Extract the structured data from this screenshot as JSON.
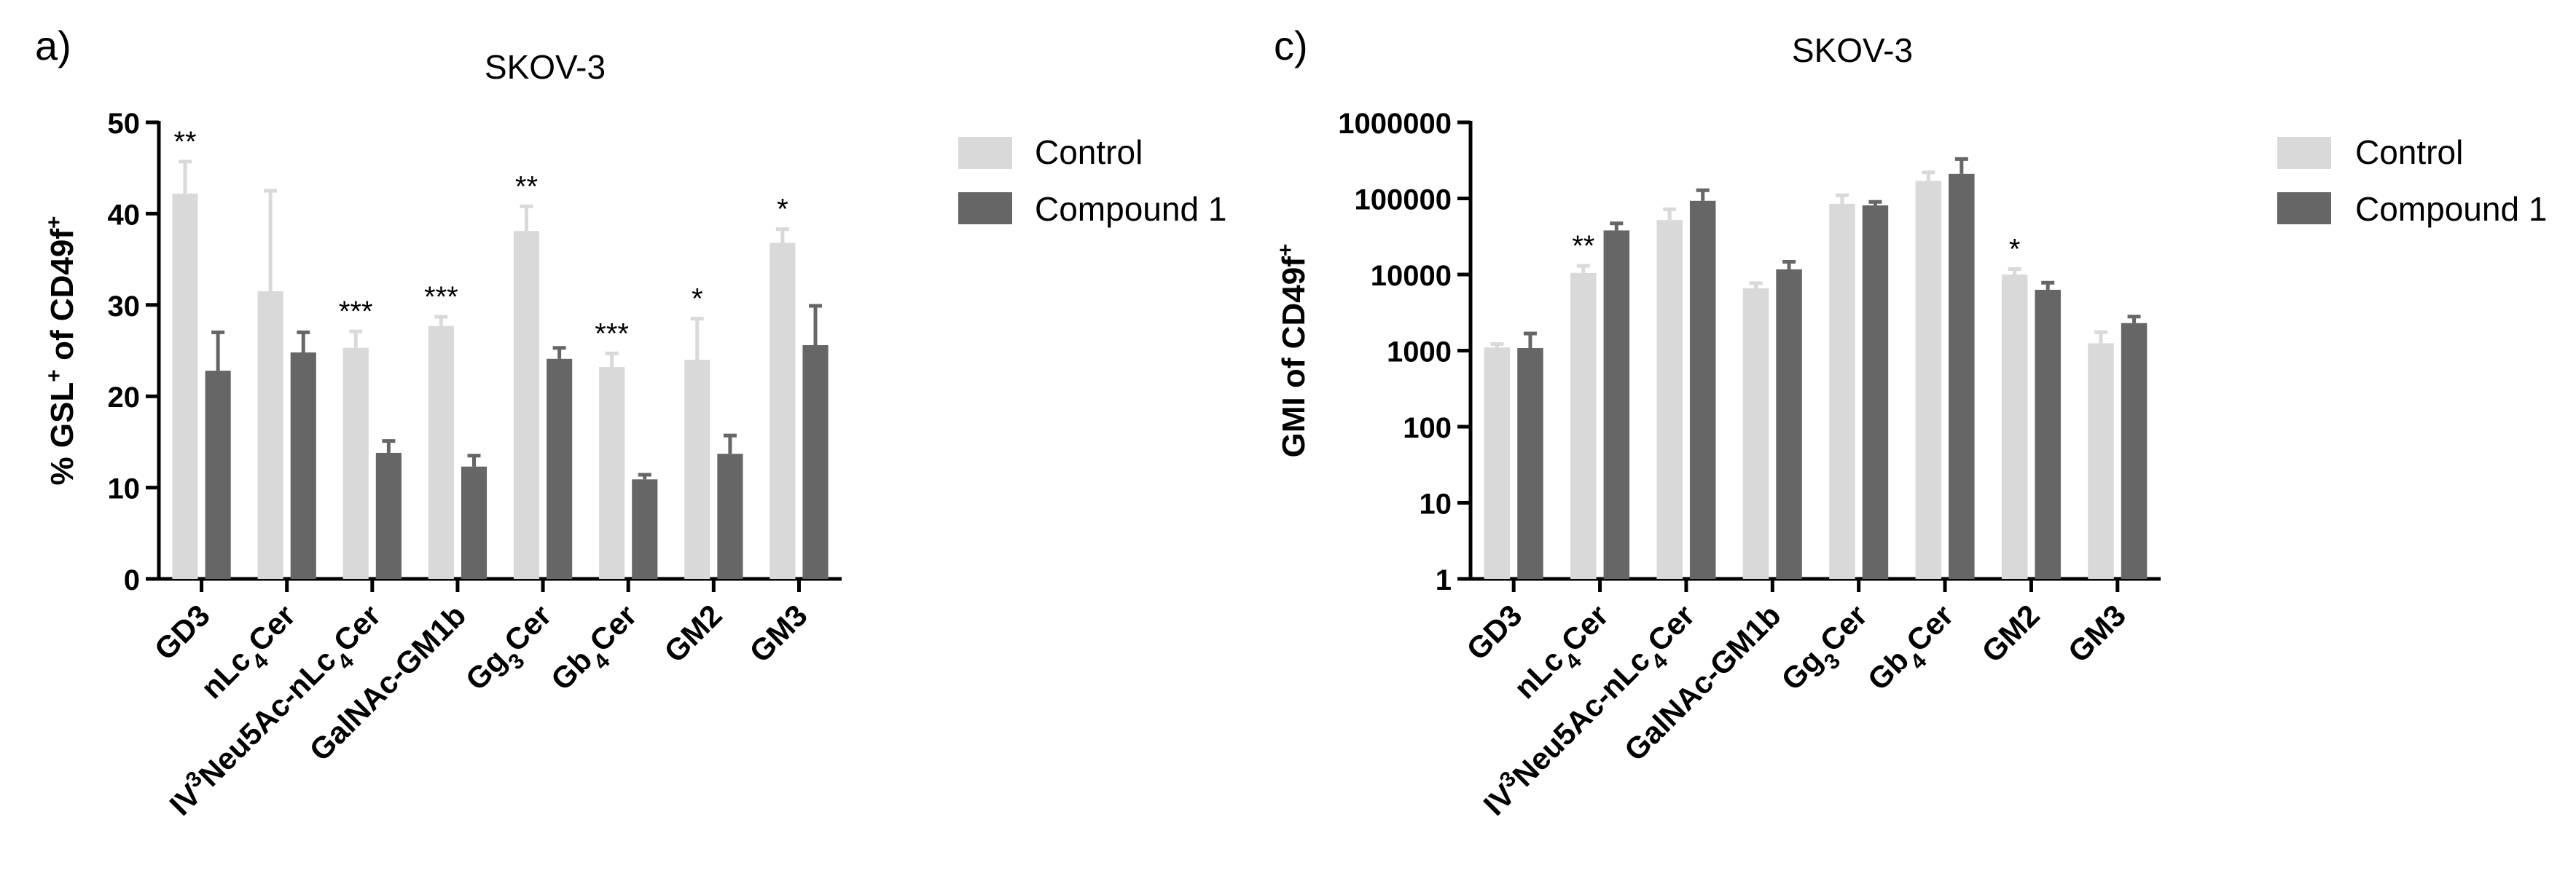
{
  "panels": [
    {
      "panel_label": "a)",
      "legend": {
        "control": "Control",
        "compound": "Compound 1"
      },
      "chart_data": {
        "type": "bar",
        "title": "SKOV-3",
        "ylabel_parts": [
          "% GSL",
          "+",
          " of CD49f",
          "+"
        ],
        "categories": [
          {
            "parts": [
              [
                "GD3",
                ""
              ]
            ]
          },
          {
            "parts": [
              [
                "nLc",
                ""
              ],
              [
                "4",
                "sub"
              ],
              [
                "Cer",
                ""
              ]
            ]
          },
          {
            "parts": [
              [
                "IV",
                ""
              ],
              [
                "3",
                "sup"
              ],
              [
                "Neu5Ac-nLc",
                ""
              ],
              [
                "4",
                "sub"
              ],
              [
                "Cer",
                ""
              ]
            ]
          },
          {
            "parts": [
              [
                "GalNAc-GM1b",
                ""
              ]
            ]
          },
          {
            "parts": [
              [
                "Gg",
                ""
              ],
              [
                "3",
                "sub"
              ],
              [
                "Cer",
                ""
              ]
            ]
          },
          {
            "parts": [
              [
                "Gb",
                ""
              ],
              [
                "4",
                "sub"
              ],
              [
                "Cer",
                ""
              ]
            ]
          },
          {
            "parts": [
              [
                "GM2",
                ""
              ]
            ]
          },
          {
            "parts": [
              [
                "GM3",
                ""
              ]
            ]
          }
        ],
        "series": [
          {
            "name": "Control",
            "color": "#d9d9d9",
            "values": [
              42.2,
              31.5,
              25.3,
              27.7,
              38.1,
              23.2,
              24.0,
              36.8
            ],
            "errors": [
              3.5,
              11.0,
              1.8,
              1.0,
              2.7,
              1.5,
              4.5,
              1.5
            ]
          },
          {
            "name": "Compound 1",
            "color": "#666666",
            "values": [
              22.8,
              24.8,
              13.8,
              12.3,
              24.1,
              10.9,
              13.7,
              25.6
            ],
            "errors": [
              4.2,
              2.2,
              1.3,
              1.2,
              1.2,
              0.5,
              2.0,
              4.3
            ]
          }
        ],
        "significance": [
          "**",
          "",
          "***",
          "***",
          "**",
          "***",
          "*",
          "*"
        ],
        "yscale": "linear",
        "ylim": [
          0,
          50
        ],
        "yticks": [
          0,
          10,
          20,
          30,
          40,
          50
        ],
        "ytick_labels": [
          "0",
          "10",
          "20",
          "30",
          "40",
          "50"
        ]
      }
    },
    {
      "panel_label": "c)",
      "legend": {
        "control": "Control",
        "compound": "Compound 1"
      },
      "chart_data": {
        "type": "bar",
        "title": "SKOV-3",
        "ylabel_parts": [
          "GMI  of CD49f",
          "+"
        ],
        "categories": [
          {
            "parts": [
              [
                "GD3",
                ""
              ]
            ]
          },
          {
            "parts": [
              [
                "nLc",
                ""
              ],
              [
                "4",
                "sub"
              ],
              [
                "Cer",
                ""
              ]
            ]
          },
          {
            "parts": [
              [
                "IV",
                ""
              ],
              [
                "3",
                "sup"
              ],
              [
                "Neu5Ac-nLc",
                ""
              ],
              [
                "4",
                "sub"
              ],
              [
                "Cer",
                ""
              ]
            ]
          },
          {
            "parts": [
              [
                "GalNAc-GM1b",
                ""
              ]
            ]
          },
          {
            "parts": [
              [
                "Gg",
                ""
              ],
              [
                "3",
                "sub"
              ],
              [
                "Cer",
                ""
              ]
            ]
          },
          {
            "parts": [
              [
                "Gb",
                ""
              ],
              [
                "4",
                "sub"
              ],
              [
                "Cer",
                ""
              ]
            ]
          },
          {
            "parts": [
              [
                "GM2",
                ""
              ]
            ]
          },
          {
            "parts": [
              [
                "GM3",
                ""
              ]
            ]
          }
        ],
        "series": [
          {
            "name": "Control",
            "color": "#d9d9d9",
            "values": [
              1100,
              10500,
              52000,
              6600,
              85000,
              170000,
              10000,
              1250
            ],
            "errors": [
              120,
              2500,
              20000,
              1100,
              25000,
              50000,
              1800,
              500
            ]
          },
          {
            "name": "Compound 1",
            "color": "#666666",
            "values": [
              1080,
              38000,
              93000,
              11700,
              81000,
              210000,
              6300,
              2300
            ],
            "errors": [
              600,
              9000,
              35000,
              3000,
              9000,
              120000,
              1500,
              500
            ]
          }
        ],
        "significance": [
          "",
          "**",
          "",
          "",
          "",
          "",
          "*",
          ""
        ],
        "yscale": "log",
        "ylim": [
          1,
          1000000
        ],
        "yticks": [
          1,
          10,
          100,
          1000,
          10000,
          100000,
          1000000
        ],
        "ytick_labels": [
          "1",
          "10",
          "100",
          "1000",
          "10000",
          "100000",
          "1000000"
        ]
      }
    }
  ]
}
